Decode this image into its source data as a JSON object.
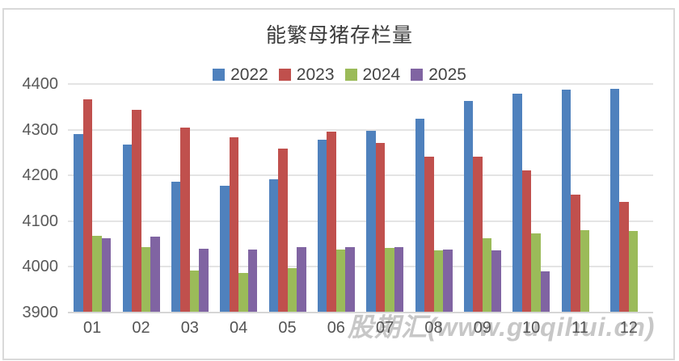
{
  "chart": {
    "watermark_text": "股期汇(www.guqihui.cn)"
  },
  "chart_data": {
    "type": "bar",
    "title": "能繁母猪存栏量",
    "categories": [
      "01",
      "02",
      "03",
      "04",
      "05",
      "06",
      "07",
      "08",
      "09",
      "10",
      "11",
      "12"
    ],
    "series": [
      {
        "name": "2022",
        "color": "#4F81BD",
        "values": [
          4290,
          4268,
          4185,
          4177,
          4192,
          4277,
          4298,
          4324,
          4362,
          4379,
          4388,
          4390
        ]
      },
      {
        "name": "2023",
        "color": "#C0504D",
        "values": [
          4367,
          4343,
          4305,
          4284,
          4258,
          4296,
          4271,
          4241,
          4240,
          4210,
          4158,
          4142
        ]
      },
      {
        "name": "2024",
        "color": "#9BBB59",
        "values": [
          4067,
          4042,
          3992,
          3986,
          3996,
          4038,
          4041,
          4036,
          4062,
          4073,
          4080,
          4078
        ]
      },
      {
        "name": "2025",
        "color": "#8064A2",
        "values": [
          4062,
          4066,
          4039,
          4038,
          4042,
          4043,
          4042,
          4038,
          4035,
          3990,
          null,
          null
        ]
      }
    ],
    "xlabel": "",
    "ylabel": "",
    "ylim": [
      3900,
      4400
    ],
    "ytick_step": 100,
    "grid": true,
    "legend_position": "top"
  },
  "colors": {
    "gridline": "#e4e4e4",
    "axis_line": "#d6d6d6",
    "tick_label": "#595959",
    "title_text": "#3b3b3b",
    "frame_border": "#d9d9d9",
    "watermark": "#c7c7c7"
  }
}
